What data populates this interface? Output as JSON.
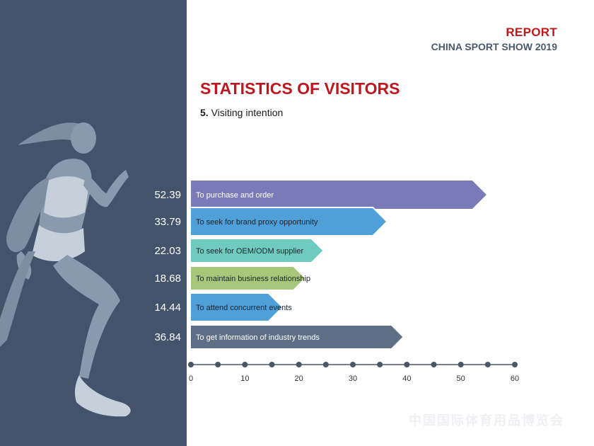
{
  "header": {
    "report_label": "REPORT",
    "subtitle": "CHINA SPORT SHOW 2019"
  },
  "section": {
    "title": "STATISTICS OF VISITORS",
    "sub_number": "5.",
    "sub_text": "Visiting intention"
  },
  "watermark_text": "中国国际体育用品博览会",
  "chart_data": {
    "type": "bar",
    "orientation": "horizontal",
    "categories": [
      "To purchase and order",
      "To seek for brand proxy opportunity",
      "To seek for OEM/ODM supplier",
      "To maintain business relationship",
      "To attend concurrent events",
      "To get information of industry trends"
    ],
    "values": [
      52.39,
      33.79,
      22.03,
      18.68,
      14.44,
      36.84
    ],
    "value_labels": [
      "52.39",
      "33.79",
      "22.03",
      "18.68",
      "14.44",
      "36.84"
    ],
    "colors": [
      "#7b7ab8",
      "#4f9fd8",
      "#6fcbbd",
      "#a9c77a",
      "#4f9fd8",
      "#5e6e85"
    ],
    "xlim": [
      0,
      60
    ],
    "x_ticks": [
      0,
      10,
      20,
      30,
      40,
      50,
      60
    ],
    "x_minor_step": 5,
    "grid": false,
    "title": "",
    "xlabel": "",
    "ylabel": ""
  }
}
